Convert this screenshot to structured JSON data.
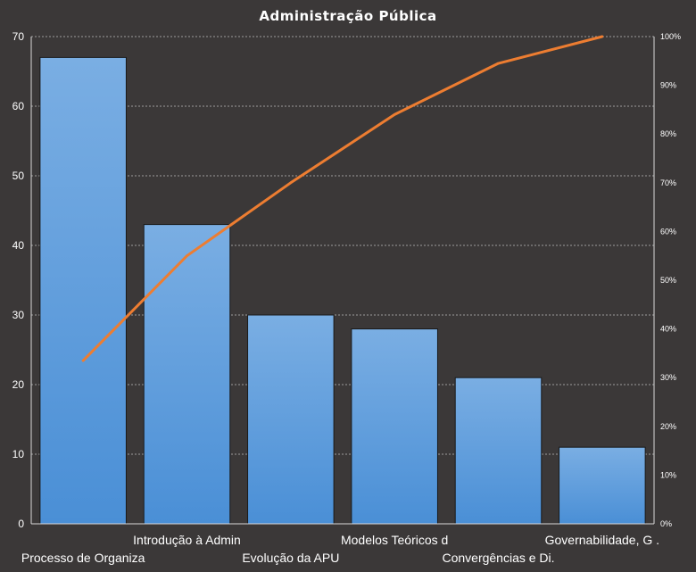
{
  "chart_data": {
    "type": "bar",
    "title": "Administração  Pública",
    "categories": [
      "Processo de Organiza",
      "Introdução  à Admin",
      "Evolução da APU",
      "Modelos Teóricos d",
      "Convergências e Di.",
      "Governabilidade, G ."
    ],
    "series": [
      {
        "type": "bar",
        "values": [
          67,
          43,
          30,
          28,
          21,
          11
        ]
      },
      {
        "type": "line",
        "axis": "secondary",
        "values": [
          33.5,
          55.0,
          70.0,
          84.0,
          94.5,
          100.0
        ]
      }
    ],
    "ylim": [
      0,
      70
    ],
    "yticks": [
      0,
      10,
      20,
      30,
      40,
      50,
      60,
      70
    ],
    "y2lim": [
      0,
      100
    ],
    "y2ticks": [
      "0%",
      "10%",
      "20%",
      "30%",
      "40%",
      "50%",
      "60%",
      "70%",
      "80%",
      "90%",
      "100%"
    ],
    "grid": true,
    "colors": {
      "bar": "#4a8fd6",
      "bar_top": "#7aaee3",
      "line": "#ed7d31",
      "background": "#3b3838"
    }
  }
}
